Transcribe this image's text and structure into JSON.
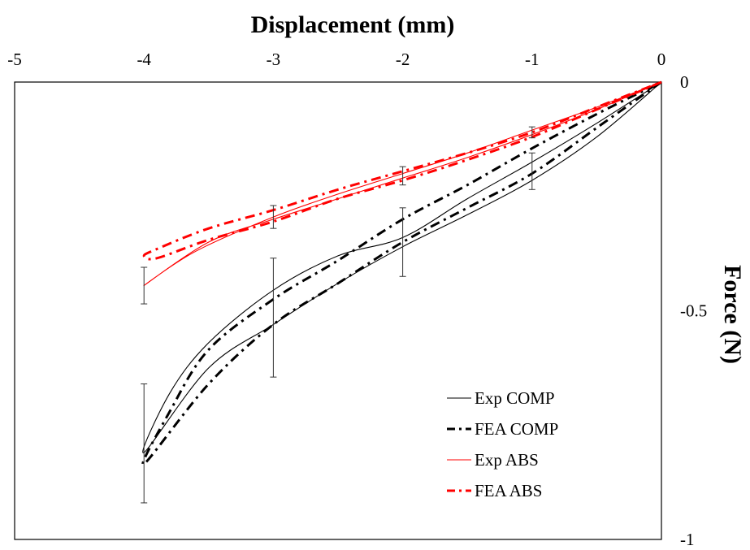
{
  "chart_data": {
    "type": "line",
    "title": "",
    "xlabel": "Displacement (mm)",
    "ylabel": "Force (N)",
    "xlim": [
      -5,
      0
    ],
    "ylim": [
      -1,
      0
    ],
    "x_ticks": [
      -5,
      -4,
      -3,
      -2,
      -1,
      0
    ],
    "x_tick_labels": [
      "-5",
      "-4",
      "-3",
      "-2",
      "-1",
      "0"
    ],
    "y_ticks": [
      0,
      -0.5,
      -1
    ],
    "y_tick_labels": [
      "0",
      "-0.5",
      "-1"
    ],
    "x_axis_position": "top",
    "y_axis_position": "right",
    "grid": false,
    "legend_position": "bottom-right",
    "series": [
      {
        "name": "Exp COMP",
        "color": "#000000",
        "style": "solid",
        "points": [
          [
            0,
            0
          ],
          [
            -0.5,
            -0.12
          ],
          [
            -1,
            -0.215
          ],
          [
            -1.5,
            -0.29
          ],
          [
            -2,
            -0.36
          ],
          [
            -2.5,
            -0.44
          ],
          [
            -3,
            -0.53
          ],
          [
            -3.5,
            -0.625
          ],
          [
            -4,
            -0.81
          ],
          [
            -3.8,
            -0.68
          ],
          [
            -3.5,
            -0.57
          ],
          [
            -3,
            -0.455
          ],
          [
            -2.5,
            -0.38
          ],
          [
            -2,
            -0.34
          ],
          [
            -1.5,
            -0.255
          ],
          [
            -1,
            -0.175
          ],
          [
            -0.5,
            -0.09
          ],
          [
            0,
            0
          ]
        ]
      },
      {
        "name": "FEA COMP",
        "color": "#000000",
        "style": "dashdot",
        "points": [
          [
            0,
            0
          ],
          [
            -0.5,
            -0.1
          ],
          [
            -1,
            -0.2
          ],
          [
            -1.5,
            -0.275
          ],
          [
            -2,
            -0.35
          ],
          [
            -2.5,
            -0.44
          ],
          [
            -3,
            -0.53
          ],
          [
            -3.5,
            -0.66
          ],
          [
            -4,
            -0.835
          ],
          [
            -3.8,
            -0.72
          ],
          [
            -3.5,
            -0.585
          ],
          [
            -3,
            -0.475
          ],
          [
            -2.5,
            -0.39
          ],
          [
            -2,
            -0.3
          ],
          [
            -1.5,
            -0.225
          ],
          [
            -1,
            -0.145
          ],
          [
            -0.5,
            -0.07
          ],
          [
            0,
            0
          ]
        ]
      },
      {
        "name": "Exp ABS",
        "color": "#ff0000",
        "style": "solid",
        "points": [
          [
            0,
            0
          ],
          [
            -0.5,
            -0.06
          ],
          [
            -1,
            -0.115
          ],
          [
            -1.5,
            -0.165
          ],
          [
            -2,
            -0.21
          ],
          [
            -2.5,
            -0.255
          ],
          [
            -3,
            -0.3
          ],
          [
            -3.5,
            -0.35
          ],
          [
            -4,
            -0.445
          ],
          [
            -3.6,
            -0.37
          ],
          [
            -3,
            -0.295
          ],
          [
            -2.5,
            -0.245
          ],
          [
            -2,
            -0.2
          ],
          [
            -1.5,
            -0.155
          ],
          [
            -1,
            -0.105
          ],
          [
            -0.5,
            -0.055
          ],
          [
            0,
            0
          ]
        ]
      },
      {
        "name": "FEA ABS",
        "color": "#ff0000",
        "style": "dashdot",
        "points": [
          [
            0,
            0
          ],
          [
            -0.5,
            -0.06
          ],
          [
            -1,
            -0.12
          ],
          [
            -1.5,
            -0.17
          ],
          [
            -2,
            -0.215
          ],
          [
            -2.5,
            -0.255
          ],
          [
            -3,
            -0.305
          ],
          [
            -3.5,
            -0.345
          ],
          [
            -3.9,
            -0.385
          ],
          [
            -4,
            -0.38
          ],
          [
            -3.9,
            -0.365
          ],
          [
            -3.5,
            -0.32
          ],
          [
            -3,
            -0.28
          ],
          [
            -2.5,
            -0.235
          ],
          [
            -2,
            -0.195
          ],
          [
            -1.5,
            -0.155
          ],
          [
            -1,
            -0.11
          ],
          [
            -0.5,
            -0.055
          ],
          [
            0,
            0
          ]
        ]
      }
    ],
    "error_bars": [
      {
        "x": -4,
        "y": -0.81,
        "low": -0.92,
        "high": -0.66
      },
      {
        "x": -3,
        "y": -0.53,
        "low": -0.645,
        "high": -0.385
      },
      {
        "x": -2,
        "y": -0.35,
        "low": -0.425,
        "high": -0.275
      },
      {
        "x": -1,
        "y": -0.195,
        "low": -0.235,
        "high": -0.155
      },
      {
        "x": -4,
        "y": -0.445,
        "low": -0.485,
        "high": -0.405
      },
      {
        "x": -3,
        "y": -0.295,
        "low": -0.32,
        "high": -0.27
      },
      {
        "x": -2,
        "y": -0.205,
        "low": -0.225,
        "high": -0.185
      },
      {
        "x": -1,
        "y": -0.11,
        "low": -0.122,
        "high": -0.098
      }
    ]
  }
}
